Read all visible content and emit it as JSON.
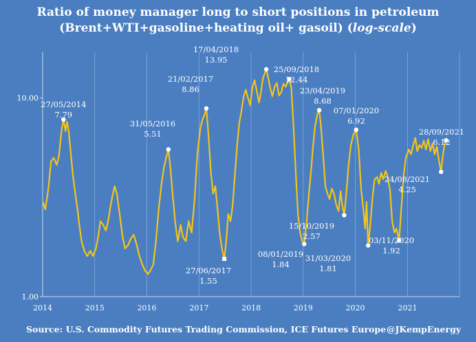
{
  "chart_data": {
    "type": "line",
    "title_line1": "Ratio of money manager long to short positions in petroleum",
    "title_line2_prefix": "(Brent+WTI+gasoline+heating oil+ gasoil) (",
    "title_line2_italic": "log-scale",
    "title_line2_suffix": ")",
    "xlabel": "",
    "ylabel": "",
    "y_scale": "log",
    "ylim": [
      1.0,
      17.0
    ],
    "y_ticks": [
      1.0,
      10.0
    ],
    "y_tick_labels": [
      "1.00",
      "10.00"
    ],
    "x_range": [
      "2014-01-01",
      "2021-12-31"
    ],
    "x_ticks": [
      "2014-01-01",
      "2015-01-01",
      "2016-01-01",
      "2017-01-01",
      "2018-01-01",
      "2019-01-01",
      "2020-01-01",
      "2021-01-01"
    ],
    "x_tick_labels": [
      "2014",
      "2015",
      "2016",
      "2017",
      "2018",
      "2019",
      "2020",
      "2021"
    ],
    "grid": "vertical",
    "line_color": "#f5c518",
    "series": [
      {
        "values": [
          [
            "2014-01-03",
            3.0
          ],
          [
            "2014-01-20",
            2.75
          ],
          [
            "2014-02-10",
            3.5
          ],
          [
            "2014-03-01",
            4.8
          ],
          [
            "2014-03-20",
            5.0
          ],
          [
            "2014-04-10",
            4.6
          ],
          [
            "2014-04-25",
            5.1
          ],
          [
            "2014-05-05",
            6.0
          ],
          [
            "2014-05-15",
            7.0
          ],
          [
            "2014-05-27",
            7.79
          ],
          [
            "2014-06-10",
            6.8
          ],
          [
            "2014-06-20",
            7.6
          ],
          [
            "2014-07-01",
            6.9
          ],
          [
            "2014-07-15",
            5.5
          ],
          [
            "2014-07-30",
            4.2
          ],
          [
            "2014-08-15",
            3.4
          ],
          [
            "2014-09-01",
            2.8
          ],
          [
            "2014-09-15",
            2.3
          ],
          [
            "2014-10-01",
            1.9
          ],
          [
            "2014-10-20",
            1.7
          ],
          [
            "2014-11-10",
            1.6
          ],
          [
            "2014-12-01",
            1.7
          ],
          [
            "2014-12-20",
            1.6
          ],
          [
            "2015-01-10",
            1.75
          ],
          [
            "2015-01-25",
            2.0
          ],
          [
            "2015-02-10",
            2.4
          ],
          [
            "2015-03-01",
            2.3
          ],
          [
            "2015-03-20",
            2.15
          ],
          [
            "2015-04-05",
            2.4
          ],
          [
            "2015-04-20",
            2.8
          ],
          [
            "2015-05-05",
            3.2
          ],
          [
            "2015-05-20",
            3.6
          ],
          [
            "2015-06-05",
            3.3
          ],
          [
            "2015-06-25",
            2.6
          ],
          [
            "2015-07-15",
            2.0
          ],
          [
            "2015-08-01",
            1.75
          ],
          [
            "2015-08-20",
            1.8
          ],
          [
            "2015-09-10",
            1.95
          ],
          [
            "2015-10-01",
            2.05
          ],
          [
            "2015-10-20",
            1.85
          ],
          [
            "2015-11-10",
            1.6
          ],
          [
            "2015-12-01",
            1.45
          ],
          [
            "2015-12-20",
            1.35
          ],
          [
            "2016-01-10",
            1.3
          ],
          [
            "2016-01-25",
            1.35
          ],
          [
            "2016-02-15",
            1.45
          ],
          [
            "2016-03-05",
            1.9
          ],
          [
            "2016-03-25",
            2.8
          ],
          [
            "2016-04-15",
            3.8
          ],
          [
            "2016-05-01",
            4.5
          ],
          [
            "2016-05-15",
            5.0
          ],
          [
            "2016-05-31",
            5.51
          ],
          [
            "2016-06-15",
            4.4
          ],
          [
            "2016-07-01",
            3.2
          ],
          [
            "2016-07-20",
            2.3
          ],
          [
            "2016-08-05",
            1.9
          ],
          [
            "2016-08-25",
            2.3
          ],
          [
            "2016-09-10",
            2.0
          ],
          [
            "2016-09-30",
            1.9
          ],
          [
            "2016-10-20",
            2.4
          ],
          [
            "2016-11-10",
            2.1
          ],
          [
            "2016-12-01",
            3.1
          ],
          [
            "2016-12-20",
            5.2
          ],
          [
            "2017-01-10",
            7.0
          ],
          [
            "2017-01-25",
            7.8
          ],
          [
            "2017-02-10",
            8.3
          ],
          [
            "2017-02-21",
            8.86
          ],
          [
            "2017-03-10",
            6.2
          ],
          [
            "2017-03-25",
            4.2
          ],
          [
            "2017-04-10",
            3.3
          ],
          [
            "2017-04-25",
            3.6
          ],
          [
            "2017-05-10",
            2.8
          ],
          [
            "2017-05-25",
            2.1
          ],
          [
            "2017-06-10",
            1.75
          ],
          [
            "2017-06-27",
            1.55
          ],
          [
            "2017-07-10",
            1.9
          ],
          [
            "2017-07-25",
            2.6
          ],
          [
            "2017-08-10",
            2.4
          ],
          [
            "2017-08-25",
            2.9
          ],
          [
            "2017-09-10",
            4.2
          ],
          [
            "2017-09-25",
            5.8
          ],
          [
            "2017-10-10",
            7.5
          ],
          [
            "2017-10-25",
            8.6
          ],
          [
            "2017-11-10",
            10.2
          ],
          [
            "2017-11-25",
            11.0
          ],
          [
            "2017-12-10",
            10.0
          ],
          [
            "2017-12-25",
            9.2
          ],
          [
            "2018-01-10",
            11.3
          ],
          [
            "2018-01-25",
            12.3
          ],
          [
            "2018-02-10",
            10.8
          ],
          [
            "2018-02-25",
            9.5
          ],
          [
            "2018-03-10",
            10.6
          ],
          [
            "2018-03-25",
            12.6
          ],
          [
            "2018-04-05",
            13.2
          ],
          [
            "2018-04-17",
            13.95
          ],
          [
            "2018-05-01",
            12.6
          ],
          [
            "2018-05-15",
            11.2
          ],
          [
            "2018-05-30",
            10.2
          ],
          [
            "2018-06-15",
            11.4
          ],
          [
            "2018-06-30",
            11.9
          ],
          [
            "2018-07-15",
            10.3
          ],
          [
            "2018-07-31",
            10.7
          ],
          [
            "2018-08-15",
            11.8
          ],
          [
            "2018-09-01",
            11.4
          ],
          [
            "2018-09-15",
            12.1
          ],
          [
            "2018-09-25",
            12.44
          ],
          [
            "2018-10-10",
            11.2
          ],
          [
            "2018-10-25",
            7.2
          ],
          [
            "2018-11-10",
            4.2
          ],
          [
            "2018-11-25",
            2.6
          ],
          [
            "2018-12-10",
            2.1
          ],
          [
            "2018-12-25",
            1.9
          ],
          [
            "2019-01-08",
            1.84
          ],
          [
            "2019-01-25",
            2.4
          ],
          [
            "2019-02-10",
            3.3
          ],
          [
            "2019-02-25",
            4.3
          ],
          [
            "2019-03-10",
            5.6
          ],
          [
            "2019-03-25",
            7.2
          ],
          [
            "2019-04-10",
            8.3
          ],
          [
            "2019-04-23",
            8.68
          ],
          [
            "2019-05-05",
            7.2
          ],
          [
            "2019-05-20",
            5.2
          ],
          [
            "2019-06-05",
            3.6
          ],
          [
            "2019-06-20",
            3.3
          ],
          [
            "2019-07-05",
            3.1
          ],
          [
            "2019-07-20",
            3.5
          ],
          [
            "2019-08-05",
            3.3
          ],
          [
            "2019-08-20",
            2.9
          ],
          [
            "2019-09-05",
            2.7
          ],
          [
            "2019-09-20",
            3.4
          ],
          [
            "2019-10-01",
            2.9
          ],
          [
            "2019-10-15",
            2.57
          ],
          [
            "2019-10-30",
            3.3
          ],
          [
            "2019-11-15",
            4.6
          ],
          [
            "2019-12-01",
            5.8
          ],
          [
            "2019-12-20",
            6.6
          ],
          [
            "2020-01-07",
            6.92
          ],
          [
            "2020-01-25",
            5.5
          ],
          [
            "2020-02-10",
            3.5
          ],
          [
            "2020-02-25",
            2.8
          ],
          [
            "2020-03-10",
            2.2
          ],
          [
            "2020-03-20",
            3.0
          ],
          [
            "2020-03-31",
            1.81
          ],
          [
            "2020-04-15",
            2.3
          ],
          [
            "2020-05-01",
            3.2
          ],
          [
            "2020-05-15",
            3.9
          ],
          [
            "2020-06-01",
            4.0
          ],
          [
            "2020-06-15",
            3.7
          ],
          [
            "2020-07-01",
            4.2
          ],
          [
            "2020-07-15",
            3.9
          ],
          [
            "2020-08-01",
            4.3
          ],
          [
            "2020-08-15",
            4.0
          ],
          [
            "2020-09-01",
            3.4
          ],
          [
            "2020-09-15",
            2.4
          ],
          [
            "2020-10-01",
            2.1
          ],
          [
            "2020-10-15",
            2.2
          ],
          [
            "2020-11-03",
            1.92
          ],
          [
            "2020-11-20",
            2.9
          ],
          [
            "2020-12-05",
            4.1
          ],
          [
            "2020-12-20",
            5.0
          ],
          [
            "2021-01-10",
            5.5
          ],
          [
            "2021-01-25",
            5.2
          ],
          [
            "2021-02-10",
            5.8
          ],
          [
            "2021-02-25",
            6.3
          ],
          [
            "2021-03-10",
            5.4
          ],
          [
            "2021-03-25",
            5.8
          ],
          [
            "2021-04-10",
            5.6
          ],
          [
            "2021-04-25",
            6.1
          ],
          [
            "2021-05-10",
            5.5
          ],
          [
            "2021-05-25",
            6.2
          ],
          [
            "2021-06-10",
            5.4
          ],
          [
            "2021-06-25",
            5.9
          ],
          [
            "2021-07-10",
            5.2
          ],
          [
            "2021-07-25",
            5.7
          ],
          [
            "2021-08-10",
            4.8
          ],
          [
            "2021-08-24",
            4.25
          ],
          [
            "2021-09-05",
            5.1
          ],
          [
            "2021-09-15",
            5.7
          ],
          [
            "2021-09-28",
            6.12
          ]
        ]
      }
    ],
    "annotations": [
      {
        "date_label": "27/05/2014",
        "value_label": "7.79",
        "x": "2014-05-27",
        "y": 7.79,
        "marker": "dot"
      },
      {
        "date_label": "31/05/2016",
        "value_label": "5.51",
        "x": "2016-05-31",
        "y": 5.51,
        "marker": "dot"
      },
      {
        "date_label": "21/02/2017",
        "value_label": "8.86",
        "x": "2017-02-21",
        "y": 8.86,
        "marker": "dot"
      },
      {
        "date_label": "27/06/2017",
        "value_label": "1.55",
        "x": "2017-06-27",
        "y": 1.55,
        "marker": "square"
      },
      {
        "date_label": "17/04/2018",
        "value_label": "13.95",
        "x": "2018-04-17",
        "y": 13.95,
        "marker": "dot"
      },
      {
        "date_label": "25/09/2018",
        "value_label": "12.44",
        "x": "2018-09-25",
        "y": 12.44,
        "marker": "dot"
      },
      {
        "date_label": "08/01/2019",
        "value_label": "1.84",
        "x": "2019-01-08",
        "y": 1.84,
        "marker": "dot"
      },
      {
        "date_label": "23/04/2019",
        "value_label": "8.68",
        "x": "2019-04-23",
        "y": 8.68,
        "marker": "dot"
      },
      {
        "date_label": "15/10/2019",
        "value_label": "2.57",
        "x": "2019-10-15",
        "y": 2.57,
        "marker": "dot"
      },
      {
        "date_label": "07/01/2020",
        "value_label": "6.92",
        "x": "2020-01-07",
        "y": 6.92,
        "marker": "dot"
      },
      {
        "date_label": "31/03/2020",
        "value_label": "1.81",
        "x": "2020-03-31",
        "y": 1.81,
        "marker": "dot"
      },
      {
        "date_label": "03/11/2020",
        "value_label": "1.92",
        "x": "2020-11-03",
        "y": 1.92,
        "marker": "dot"
      },
      {
        "date_label": "24/08/2021",
        "value_label": "4.25",
        "x": "2021-08-24",
        "y": 4.25,
        "marker": "dot"
      },
      {
        "date_label": "28/09/2021",
        "value_label": "6.12",
        "x": "2021-09-28",
        "y": 6.12,
        "marker": "dot"
      }
    ]
  },
  "footer": {
    "source": "Source: U.S. Commodity Futures Trading Commission, ICE Futures Europe",
    "handle": "@JKempEnergy"
  },
  "colors": {
    "background": "#4a7ec0",
    "line": "#f5c518",
    "text": "#ffffff",
    "grid": "#7aa3d4"
  }
}
